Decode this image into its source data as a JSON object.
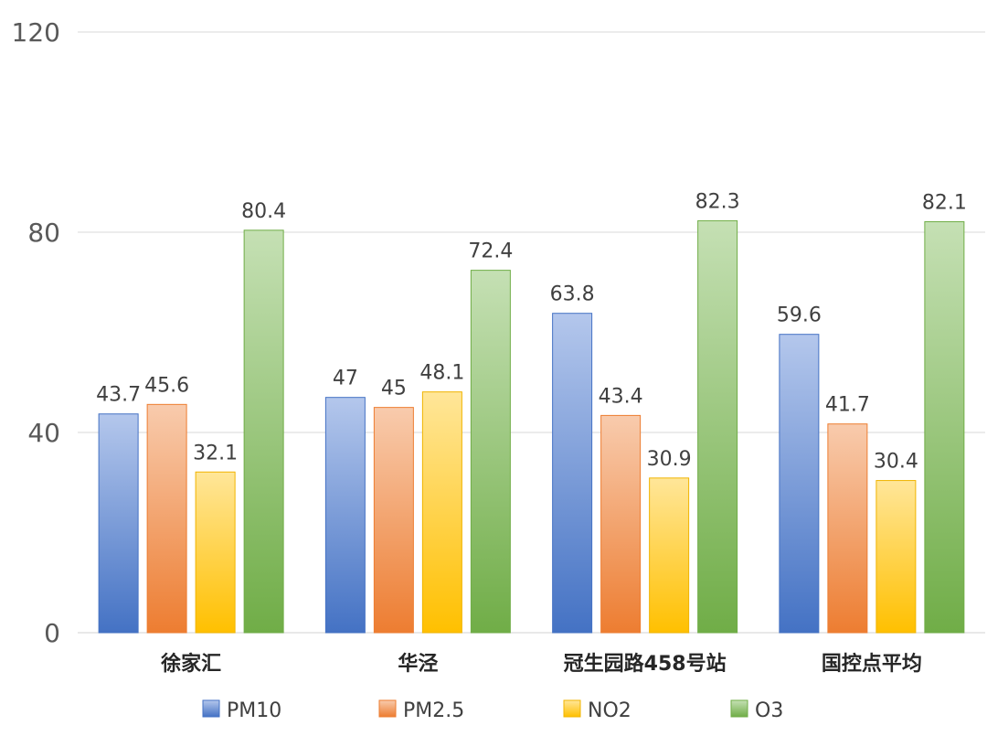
{
  "chart_data": {
    "type": "bar",
    "categories": [
      "徐家汇",
      "华泾",
      "冠生园路458号站",
      "国控点平均"
    ],
    "series": [
      {
        "name": "PM10",
        "values": [
          43.7,
          47,
          63.8,
          59.6
        ],
        "color_top": "#b4c7ec",
        "color_bottom": "#4472c4",
        "stroke": "#4472c4"
      },
      {
        "name": "PM2.5",
        "values": [
          45.6,
          45,
          43.4,
          41.7
        ],
        "color_top": "#f8cbad",
        "color_bottom": "#ed7d31",
        "stroke": "#ed7d31"
      },
      {
        "name": "NO2",
        "values": [
          32.1,
          48.1,
          30.9,
          30.4
        ],
        "color_top": "#ffe699",
        "color_bottom": "#ffc000",
        "stroke": "#f0b400"
      },
      {
        "name": "O3",
        "values": [
          80.4,
          72.4,
          82.3,
          82.1
        ],
        "color_top": "#c5e0b4",
        "color_bottom": "#70ad47",
        "stroke": "#70ad47"
      }
    ],
    "data_labels": [
      [
        "43.7",
        "47",
        "63.8",
        "59.6"
      ],
      [
        "45.6",
        "45",
        "43.4",
        "41.7"
      ],
      [
        "32.1",
        "48.1",
        "30.9",
        "30.4"
      ],
      [
        "80.4",
        "72.4",
        "82.3",
        "82.1"
      ]
    ],
    "y_ticks": [
      "0",
      "40",
      "80",
      "120"
    ],
    "ylim": [
      0,
      120
    ],
    "grid": true,
    "legend_position": "bottom",
    "title": "",
    "xlabel": "",
    "ylabel": ""
  }
}
